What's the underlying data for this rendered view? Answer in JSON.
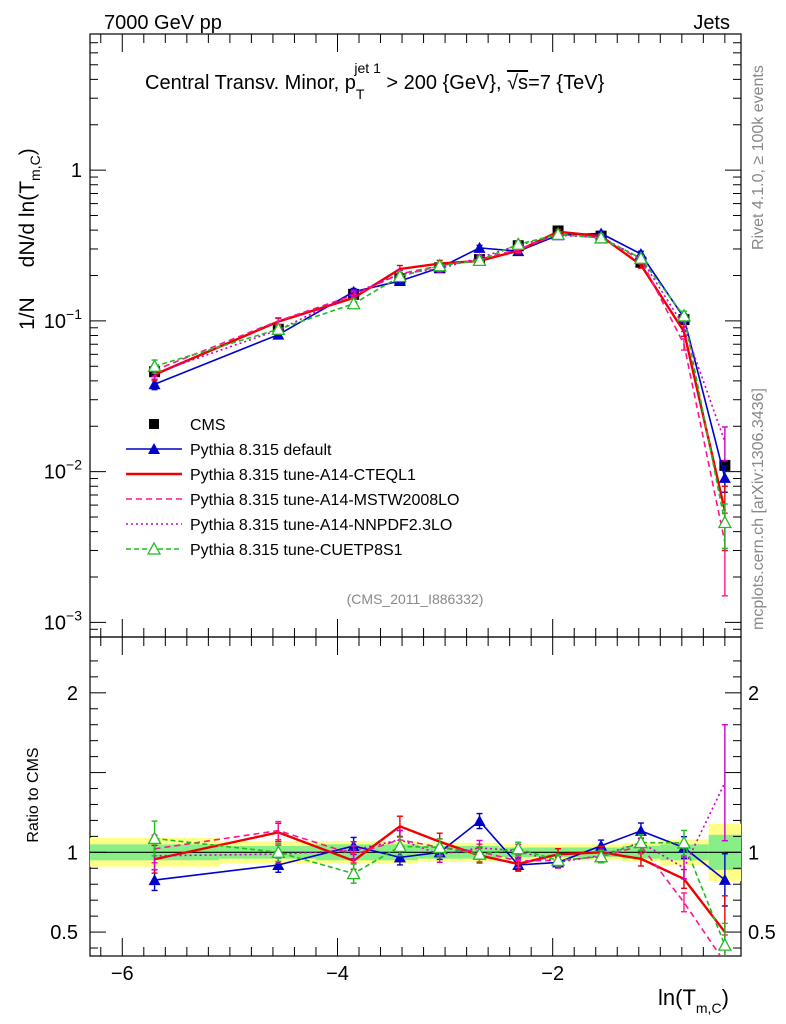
{
  "header": {
    "left": "7000 GeV pp",
    "right": "Jets"
  },
  "side_labels": {
    "rivet": "Rivet 4.1.0, ≥ 100k events",
    "mcplots": "mcplots.cern.ch [arXiv:1306.3436]"
  },
  "chart_data": {
    "type": "line",
    "title": {
      "part1": "Central Transv. Minor, p",
      "sub": "T",
      "sup": "jet 1",
      "part2": " > 200 {GeV}, ",
      "sqrt": "√s",
      "part3": "=7 {TeV}"
    },
    "analysis_tag": "(CMS_2011_I886332)",
    "xlabel": {
      "main": "ln(T",
      "sub": "m,C",
      "close": ")"
    },
    "ylabel": {
      "prefix": "1/N",
      "main": "dN/d ln(T",
      "sub": "m,C",
      "close": ")"
    },
    "ratio_ylabel": "Ratio to CMS",
    "xlim": [
      -6.3,
      -0.25
    ],
    "ylim": [
      0.0008,
      8
    ],
    "yscale": "log",
    "ratio_ylim": [
      0.35,
      2.35
    ],
    "x_ticks": [
      {
        "value": -6,
        "label": "−6"
      },
      {
        "value": -4,
        "label": "−4"
      },
      {
        "value": -2,
        "label": "−2"
      }
    ],
    "y_ticks": [
      {
        "value": 1,
        "base": "1",
        "exp": ""
      },
      {
        "value": 0.1,
        "base": "10",
        "exp": "−1"
      },
      {
        "value": 0.01,
        "base": "10",
        "exp": "−2"
      },
      {
        "value": 0.001,
        "base": "10",
        "exp": "−3"
      }
    ],
    "ratio_ticks": [
      {
        "value": 0.5,
        "label": "0.5"
      },
      {
        "value": 1,
        "label": "1"
      },
      {
        "value": 2,
        "label": "2"
      }
    ],
    "bin_edges": [
      -6.3,
      -5.1,
      -4.2,
      -3.6,
      -3.25,
      -2.85,
      -2.5,
      -2.15,
      -1.75,
      -1.35,
      -1.0,
      -0.55,
      -0.25
    ],
    "x": [
      -5.7,
      -4.55,
      -3.85,
      -3.42,
      -3.05,
      -2.68,
      -2.32,
      -1.95,
      -1.55,
      -1.18,
      -0.78,
      -0.4
    ],
    "data": {
      "name": "CMS",
      "values": [
        0.046,
        0.088,
        0.15,
        0.19,
        0.225,
        0.255,
        0.315,
        0.395,
        0.365,
        0.245,
        0.102,
        0.011
      ],
      "stat_band": [
        0.05,
        0.04,
        0.05,
        0.05,
        0.04,
        0.04,
        0.03,
        0.03,
        0.03,
        0.04,
        0.05,
        0.11
      ],
      "total_band": [
        0.09,
        0.07,
        0.07,
        0.07,
        0.06,
        0.06,
        0.05,
        0.05,
        0.05,
        0.06,
        0.08,
        0.18
      ]
    },
    "series": [
      {
        "name": "Pythia 8.315 default",
        "color": "#0000cc",
        "dash": "",
        "marker": "triangle-filled",
        "values": [
          0.038,
          0.081,
          0.156,
          0.184,
          0.225,
          0.305,
          0.29,
          0.37,
          0.38,
          0.278,
          0.105,
          0.0091
        ],
        "err": [
          0.003,
          0.004,
          0.008,
          0.009,
          0.01,
          0.012,
          0.012,
          0.013,
          0.013,
          0.012,
          0.007,
          0.0018
        ]
      },
      {
        "name": "Pythia 8.315 tune-A14-CTEQL1",
        "color": "#ee0000",
        "dash": "",
        "marker": "none",
        "values": [
          0.044,
          0.099,
          0.142,
          0.221,
          0.24,
          0.25,
          0.292,
          0.39,
          0.365,
          0.235,
          0.085,
          0.0055
        ],
        "err": [
          0.004,
          0.005,
          0.008,
          0.012,
          0.012,
          0.012,
          0.013,
          0.014,
          0.014,
          0.011,
          0.006,
          0.0025
        ]
      },
      {
        "name": "Pythia 8.315 tune-A14-MSTW2008LO",
        "color": "#ff1493",
        "dash": "6,4",
        "marker": "none",
        "values": [
          0.047,
          0.1,
          0.148,
          0.205,
          0.232,
          0.256,
          0.298,
          0.375,
          0.355,
          0.255,
          0.07,
          0.0034
        ],
        "err": [
          0.004,
          0.005,
          0.008,
          0.011,
          0.012,
          0.012,
          0.013,
          0.014,
          0.014,
          0.012,
          0.006,
          0.0019
        ]
      },
      {
        "name": "Pythia 8.315 tune-A14-NNPDF2.3LO",
        "color": "#cc00cc",
        "dash": "2,3",
        "marker": "none",
        "values": [
          0.045,
          0.087,
          0.152,
          0.205,
          0.222,
          0.262,
          0.318,
          0.37,
          0.358,
          0.26,
          0.092,
          0.0158
        ],
        "err": [
          0.004,
          0.005,
          0.008,
          0.011,
          0.011,
          0.012,
          0.013,
          0.014,
          0.014,
          0.012,
          0.007,
          0.004
        ]
      },
      {
        "name": "Pythia 8.315 tune-CUETP8S1",
        "color": "#22bb22",
        "dash": "5,3",
        "marker": "triangle-open",
        "values": [
          0.05,
          0.088,
          0.13,
          0.197,
          0.232,
          0.252,
          0.322,
          0.375,
          0.355,
          0.26,
          0.108,
          0.0046
        ],
        "err": [
          0.005,
          0.005,
          0.009,
          0.011,
          0.012,
          0.012,
          0.013,
          0.014,
          0.014,
          0.012,
          0.008,
          0.0015
        ]
      }
    ]
  }
}
